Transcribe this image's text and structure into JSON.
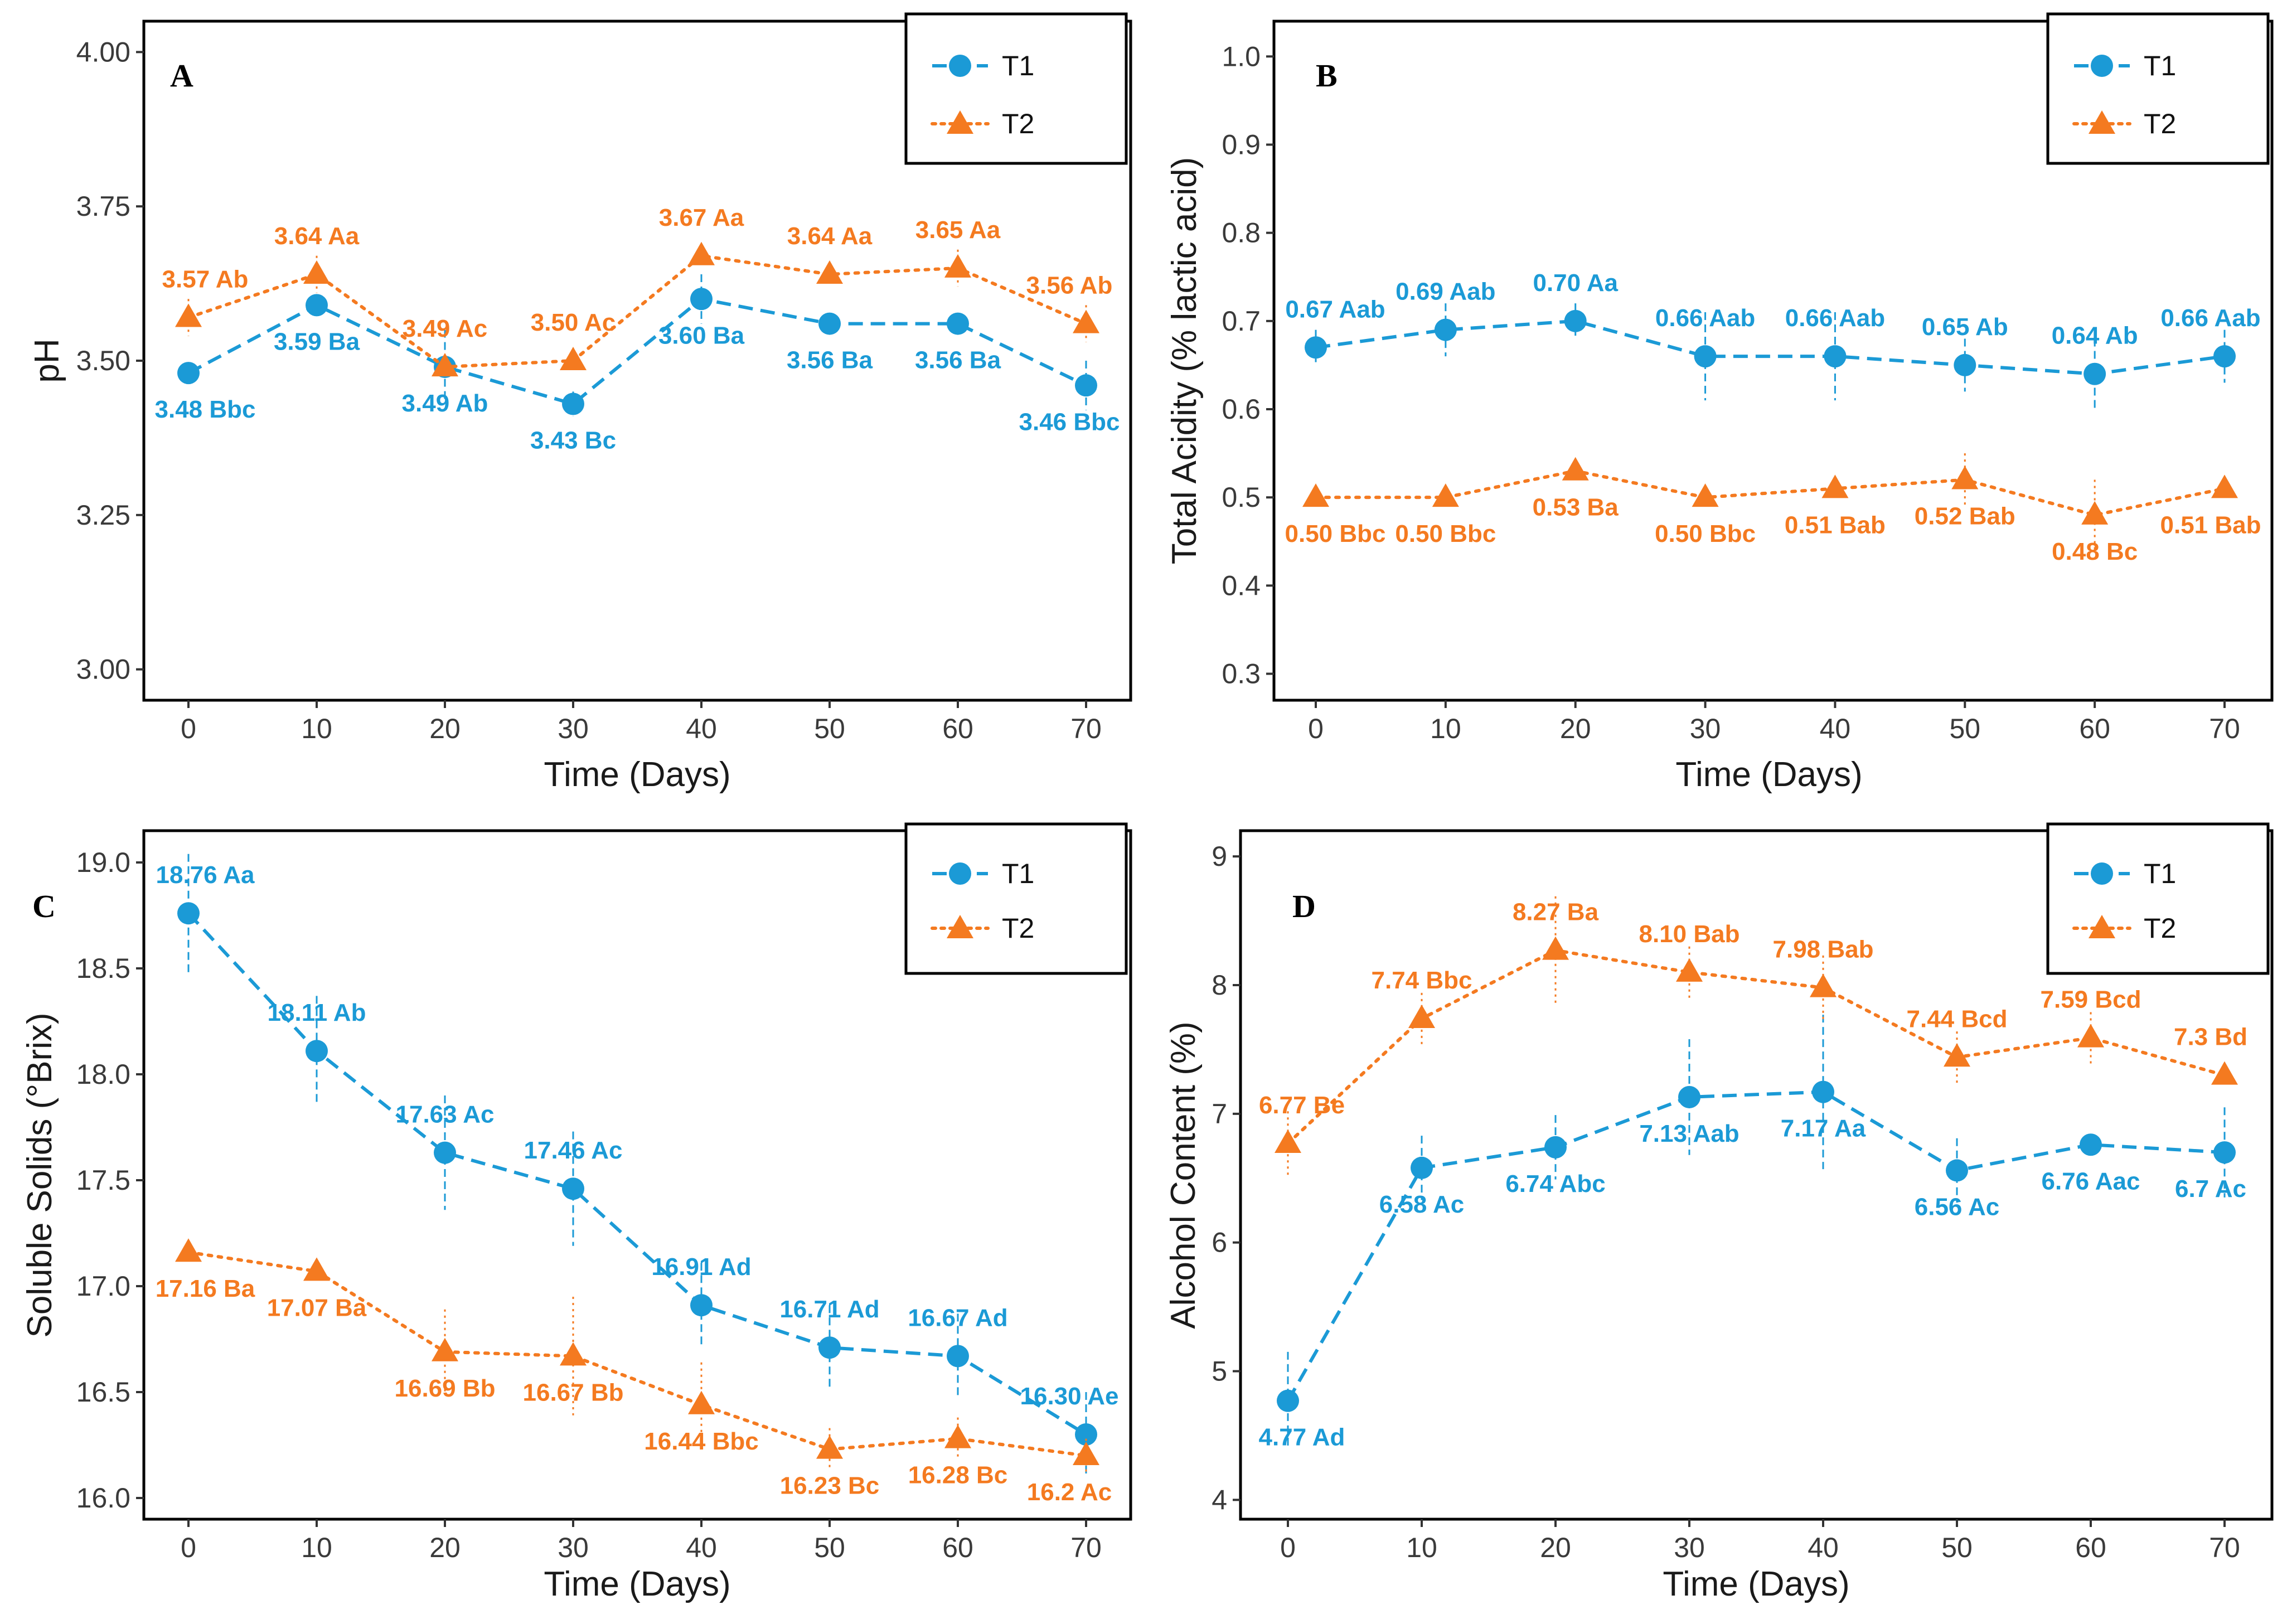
{
  "colors": {
    "t1": "#1b9ad6",
    "t2": "#f47a20",
    "frame": "#000000"
  },
  "chart_data": [
    {
      "panel": "A",
      "type": "line",
      "xlabel": "Time (Days)",
      "ylabel": "pH",
      "ylim": [
        2.95,
        4.05
      ],
      "yticks": [
        "3.00",
        "3.25",
        "3.50",
        "3.75",
        "4.00"
      ],
      "x": [
        0,
        10,
        20,
        30,
        40,
        50,
        60,
        70
      ],
      "legend": {
        "position": "top-right",
        "entries": [
          "T1",
          "T2"
        ]
      },
      "series": [
        {
          "name": "T1",
          "values": [
            3.48,
            3.59,
            3.49,
            3.43,
            3.6,
            3.56,
            3.56,
            3.46
          ],
          "errors": [
            0.0,
            0.0,
            0.06,
            0.02,
            0.04,
            0.0,
            0.0,
            0.04
          ],
          "labels": [
            "3.48 Bbc",
            "3.59 Ba",
            "3.49 Ab",
            "3.43 Bc",
            "3.60 Ba",
            "3.56 Ba",
            "3.56 Ba",
            "3.46 Bbc"
          ],
          "label_pos": [
            "below",
            "below",
            "below",
            "below",
            "below",
            "below",
            "below",
            "below"
          ]
        },
        {
          "name": "T2",
          "values": [
            3.57,
            3.64,
            3.49,
            3.5,
            3.67,
            3.64,
            3.65,
            3.56
          ],
          "errors": [
            0.03,
            0.03,
            0.0,
            0.0,
            0.0,
            0.0,
            0.03,
            0.03
          ],
          "labels": [
            "3.57 Ab",
            "3.64 Aa",
            "3.49 Ac",
            "3.50 Ac",
            "3.67 Aa",
            "3.64 Aa",
            "3.65 Aa",
            "3.56 Ab"
          ],
          "label_pos": [
            "above",
            "above",
            "above",
            "above",
            "above",
            "above",
            "above",
            "above"
          ]
        }
      ]
    },
    {
      "panel": "B",
      "type": "line",
      "xlabel": "Time (Days)",
      "ylabel": "Total Acidity (% lactic acid)",
      "ylim": [
        0.27,
        1.04
      ],
      "yticks": [
        "0.3",
        "0.4",
        "0.5",
        "0.6",
        "0.7",
        "0.8",
        "0.9",
        "1.0"
      ],
      "x": [
        0,
        10,
        20,
        30,
        40,
        50,
        60,
        70
      ],
      "legend": {
        "position": "top-right",
        "entries": [
          "T1",
          "T2"
        ]
      },
      "series": [
        {
          "name": "T1",
          "values": [
            0.67,
            0.69,
            0.7,
            0.66,
            0.66,
            0.65,
            0.64,
            0.66
          ],
          "errors": [
            0.02,
            0.03,
            0.02,
            0.05,
            0.05,
            0.03,
            0.04,
            0.03
          ],
          "labels": [
            "0.67 Aab",
            "0.69 Aab",
            "0.70 Aa",
            "0.66 Aab",
            "0.66 Aab",
            "0.65 Ab",
            "0.64 Ab",
            "0.66 Aab"
          ],
          "label_pos": [
            "above",
            "above",
            "above",
            "above",
            "above",
            "above",
            "above",
            "above"
          ]
        },
        {
          "name": "T2",
          "values": [
            0.5,
            0.5,
            0.53,
            0.5,
            0.51,
            0.52,
            0.48,
            0.51
          ],
          "errors": [
            0.0,
            0.0,
            0.0,
            0.0,
            0.0,
            0.03,
            0.04,
            0.0
          ],
          "labels": [
            "0.50 Bbc",
            "0.50 Bbc",
            "0.53 Ba",
            "0.50 Bbc",
            "0.51 Bab",
            "0.52 Bab",
            "0.48 Bc",
            "0.51 Bab"
          ],
          "label_pos": [
            "below",
            "below",
            "below",
            "below",
            "below",
            "below",
            "below",
            "below"
          ]
        }
      ]
    },
    {
      "panel": "C",
      "type": "line",
      "xlabel": "Time (Days)",
      "ylabel": "Soluble Solids (°Brix)",
      "ylim": [
        15.9,
        19.15
      ],
      "yticks": [
        "16.0",
        "16.5",
        "17.0",
        "17.5",
        "18.0",
        "18.5",
        "19.0"
      ],
      "x": [
        0,
        10,
        20,
        30,
        40,
        50,
        60,
        70
      ],
      "legend": {
        "position": "top-right",
        "entries": [
          "T1",
          "T2"
        ]
      },
      "series": [
        {
          "name": "T1",
          "values": [
            18.76,
            18.11,
            17.63,
            17.46,
            16.91,
            16.71,
            16.67,
            16.3
          ],
          "errors": [
            0.28,
            0.26,
            0.27,
            0.27,
            0.2,
            0.2,
            0.2,
            0.2
          ],
          "labels": [
            "18.76 Aa",
            "18.11 Ab",
            "17.63 Ac",
            "17.46 Ac",
            "16.91 Ad",
            "16.71 Ad",
            "16.67 Ad",
            "16.30 Ae"
          ],
          "label_pos": [
            "above",
            "above",
            "above",
            "above",
            "above",
            "above",
            "above",
            "above"
          ]
        },
        {
          "name": "T2",
          "values": [
            17.16,
            17.07,
            16.69,
            16.67,
            16.44,
            16.23,
            16.28,
            16.2
          ],
          "errors": [
            0.0,
            0.0,
            0.2,
            0.28,
            0.2,
            0.1,
            0.1,
            0.08
          ],
          "labels": [
            "17.16 Ba",
            "17.07 Ba",
            "16.69 Bb",
            "16.67 Bb",
            "16.44 Bbc",
            "16.23 Bc",
            "16.28 Bc",
            "16.2 Ac"
          ],
          "label_pos": [
            "below",
            "below",
            "below",
            "below",
            "below",
            "below",
            "below",
            "below"
          ]
        }
      ]
    },
    {
      "panel": "D",
      "type": "line",
      "xlabel": "Time (Days)",
      "ylabel": "Alcohol Content (%)",
      "ylim": [
        3.85,
        9.2
      ],
      "yticks": [
        "4",
        "5",
        "6",
        "7",
        "8",
        "9"
      ],
      "x": [
        0,
        10,
        20,
        30,
        40,
        50,
        60,
        70
      ],
      "legend": {
        "position": "top-right",
        "entries": [
          "T1",
          "T2"
        ]
      },
      "series": [
        {
          "name": "T1",
          "values": [
            4.77,
            6.58,
            6.74,
            7.13,
            7.17,
            6.56,
            6.76,
            6.7
          ],
          "errors": [
            0.38,
            0.25,
            0.25,
            0.45,
            0.6,
            0.25,
            0.0,
            0.35
          ],
          "labels": [
            "4.77 Ad",
            "6.58 Ac",
            "6.74 Abc",
            "7.13 Aab",
            "7.17 Aa",
            "6.56 Ac",
            "6.76 Aac",
            "6.7 Ac"
          ],
          "label_pos": [
            "below",
            "below",
            "below",
            "below",
            "below",
            "below",
            "below",
            "below"
          ]
        },
        {
          "name": "T2",
          "values": [
            6.77,
            7.74,
            8.27,
            8.1,
            7.98,
            7.44,
            7.59,
            7.3
          ],
          "errors": [
            0.25,
            0.2,
            0.42,
            0.2,
            0.25,
            0.2,
            0.2,
            0.0
          ],
          "labels": [
            "6.77 Be",
            "7.74 Bbc",
            "8.27 Ba",
            "8.10 Bab",
            "7.98 Bab",
            "7.44 Bcd",
            "7.59 Bcd",
            "7.3 Bd"
          ],
          "label_pos": [
            "above",
            "above",
            "above",
            "above",
            "above",
            "above",
            "above",
            "above"
          ]
        }
      ]
    }
  ]
}
